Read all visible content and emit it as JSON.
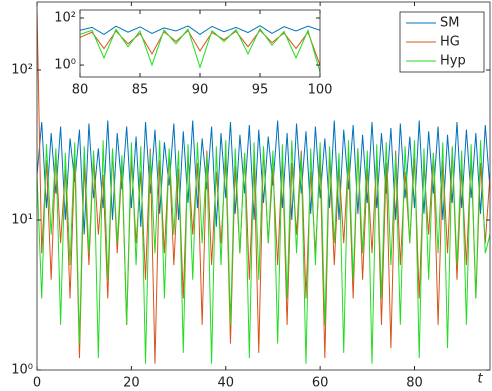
{
  "chart_data": [
    {
      "type": "line",
      "x_label": "t",
      "log_y": true,
      "legend": "upper right",
      "x": [
        0,
        1,
        2,
        3,
        4,
        5,
        6,
        7,
        8,
        9,
        10,
        11,
        12,
        13,
        14,
        15,
        16,
        17,
        18,
        19,
        20,
        21,
        22,
        23,
        24,
        25,
        26,
        27,
        28,
        29,
        30,
        31,
        32,
        33,
        34,
        35,
        36,
        37,
        38,
        39,
        40,
        41,
        42,
        43,
        44,
        45,
        46,
        47,
        48,
        49,
        50,
        51,
        52,
        53,
        54,
        55,
        56,
        57,
        58,
        59,
        60,
        61,
        62,
        63,
        64,
        65,
        66,
        67,
        68,
        69,
        70,
        71,
        72,
        73,
        74,
        75,
        76,
        77,
        78,
        79,
        80,
        81,
        82,
        83,
        84,
        85,
        86,
        87,
        88,
        89,
        90,
        91,
        92,
        93,
        94,
        95,
        96
      ],
      "xlim": [
        0,
        96
      ],
      "xticks": [
        0,
        20,
        40,
        60,
        80
      ],
      "ylim": [
        1,
        284
      ],
      "yticks": [
        {
          "value": 1,
          "label": "10⁰"
        },
        {
          "value": 10,
          "label": "10¹"
        },
        {
          "value": 100,
          "label": "10²"
        }
      ],
      "series": [
        {
          "name": "SM",
          "color": "#0072bd",
          "values": [
            20,
            45,
            12,
            38,
            15,
            42,
            10,
            35,
            18,
            40,
            8,
            44,
            14,
            30,
            12,
            46,
            10,
            38,
            16,
            42,
            12,
            36,
            9,
            45,
            15,
            40,
            11,
            33,
            17,
            44,
            10,
            39,
            13,
            46,
            12,
            35,
            16,
            42,
            9,
            38,
            14,
            45,
            11,
            37,
            15,
            43,
            10,
            40,
            13,
            36,
            17,
            46,
            12,
            38,
            10,
            44,
            15,
            39,
            11,
            42,
            14,
            35,
            12,
            46,
            10,
            40,
            16,
            43,
            11,
            37,
            13,
            45,
            12,
            38,
            15,
            41,
            10,
            44,
            14,
            36,
            12,
            46,
            11,
            39,
            15,
            42,
            10,
            37,
            13,
            45,
            12,
            40,
            14,
            38,
            11,
            43,
            16
          ]
        },
        {
          "name": "HG",
          "color": "#d95319",
          "values": [
            250,
            6,
            25,
            4,
            28,
            7,
            22,
            3,
            26,
            1.2,
            24,
            5,
            27,
            8,
            20,
            3,
            29,
            6,
            23,
            2,
            26,
            7,
            21,
            4,
            30,
            1.1,
            25,
            6,
            28,
            5,
            22,
            3,
            27,
            8,
            24,
            2,
            29,
            5,
            21,
            7,
            26,
            1.5,
            23,
            6,
            28,
            4,
            25,
            1.3,
            30,
            7,
            22,
            5,
            27,
            2,
            24,
            8,
            29,
            3,
            21,
            6,
            25,
            1.2,
            28,
            5,
            23,
            7,
            26,
            3,
            30,
            4,
            22,
            6,
            27,
            2,
            24,
            1.4,
            29,
            5,
            21,
            7,
            26,
            3,
            23,
            8,
            28,
            2,
            25,
            6,
            30,
            4,
            22,
            5,
            27,
            3,
            24,
            7,
            20
          ]
        },
        {
          "name": "Hyp",
          "color": "#22dd22",
          "values": [
            20,
            3,
            32,
            8,
            30,
            2,
            28,
            5,
            33,
            1.5,
            31,
            6,
            29,
            1.2,
            34,
            4,
            30,
            7,
            27,
            2,
            33,
            5,
            31,
            1.1,
            28,
            6,
            34,
            3,
            30,
            8,
            29,
            1.3,
            32,
            4,
            33,
            7,
            27,
            1.1,
            31,
            5,
            34,
            2,
            30,
            6,
            28,
            1.2,
            33,
            4,
            31,
            7,
            29,
            1.5,
            32,
            3,
            34,
            6,
            27,
            1.1,
            30,
            5,
            33,
            2,
            31,
            7,
            28,
            1.3,
            34,
            4,
            30,
            6,
            29,
            1.1,
            32,
            3,
            33,
            5,
            27,
            2,
            31,
            7,
            34,
            1.2,
            30,
            4,
            28,
            6,
            33,
            1.4,
            31,
            5,
            29,
            2,
            32,
            3,
            34,
            6,
            8
          ]
        }
      ]
    },
    {
      "type": "line",
      "log_y": true,
      "x": [
        80,
        81,
        82,
        83,
        84,
        85,
        86,
        87,
        88,
        89,
        90,
        91,
        92,
        93,
        94,
        95,
        96,
        97,
        98,
        99,
        100
      ],
      "xlim": [
        80,
        100
      ],
      "xticks": [
        80,
        85,
        90,
        95,
        100
      ],
      "ylim": [
        0.31,
        219
      ],
      "yticks": [
        {
          "value": 1,
          "label": "10⁰"
        },
        {
          "value": 100,
          "label": "10²"
        }
      ],
      "series": [
        {
          "color": "#0072bd",
          "values": [
            30,
            40,
            20,
            45,
            25,
            42,
            22,
            38,
            28,
            46,
            20,
            44,
            26,
            40,
            24,
            47,
            22,
            43,
            28,
            45,
            30
          ]
        },
        {
          "color": "#d95319",
          "values": [
            15,
            25,
            5,
            28,
            8,
            22,
            3,
            26,
            10,
            29,
            4,
            24,
            12,
            27,
            6,
            30,
            9,
            23,
            5,
            25,
            1
          ]
        },
        {
          "color": "#22dd22",
          "values": [
            20,
            30,
            2,
            33,
            6,
            28,
            1,
            31,
            8,
            34,
            0.8,
            29,
            10,
            32,
            3,
            35,
            7,
            27,
            2,
            30,
            0.5
          ]
        }
      ]
    }
  ]
}
